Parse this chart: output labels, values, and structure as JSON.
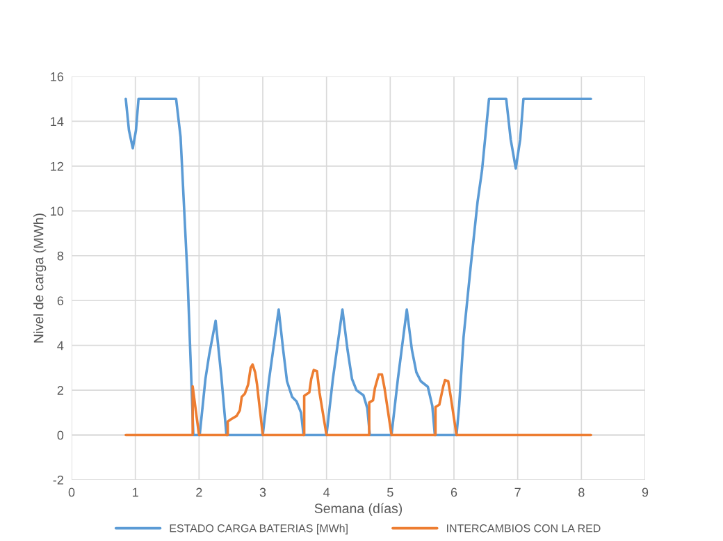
{
  "chart_data": {
    "type": "line",
    "xlabel": "Semana (días)",
    "ylabel": "Nivel de carga (MWh)",
    "xlim": [
      0,
      9
    ],
    "xticks": [
      0,
      1,
      2,
      3,
      4,
      5,
      6,
      7,
      8,
      9
    ],
    "ylim": [
      -2,
      16
    ],
    "yticks": [
      -2,
      0,
      2,
      4,
      6,
      8,
      10,
      12,
      14,
      16
    ],
    "grid": true,
    "legend": "bottom",
    "marker": "none",
    "line_style": "solid",
    "series": [
      {
        "name": "ESTADO CARGA BATERIAS [MWh]",
        "color": "#5b9bd5",
        "x": [
          0.85,
          0.9,
          0.96,
          1.01,
          1.05,
          1.64,
          1.71,
          1.82,
          1.91,
          2.01,
          2.1,
          2.16,
          2.26,
          2.35,
          2.43,
          3.0,
          3.1,
          3.25,
          3.32,
          3.38,
          3.46,
          3.53,
          3.6,
          3.64,
          4.0,
          4.1,
          4.25,
          4.33,
          4.4,
          4.47,
          4.58,
          4.64,
          4.68,
          5.02,
          5.12,
          5.26,
          5.34,
          5.41,
          5.48,
          5.59,
          5.66,
          5.7,
          6.04,
          6.08,
          6.15,
          6.26,
          6.37,
          6.44,
          6.55,
          6.82,
          6.89,
          6.97,
          7.04,
          7.09,
          8.15
        ],
        "values": [
          15,
          13.6,
          12.8,
          13.6,
          15,
          15,
          13.3,
          7.0,
          0,
          0,
          2.5,
          3.6,
          5.1,
          2.6,
          0,
          0,
          2.5,
          5.6,
          3.8,
          2.4,
          1.7,
          1.5,
          1.0,
          0,
          0,
          2.5,
          5.6,
          3.8,
          2.5,
          2.0,
          1.77,
          1.2,
          0,
          0,
          2.5,
          5.6,
          3.8,
          2.8,
          2.4,
          2.15,
          1.3,
          0,
          0,
          1.25,
          4.35,
          7.45,
          10.4,
          11.8,
          15,
          15,
          13.2,
          11.9,
          13.2,
          15,
          15
        ]
      },
      {
        "name": "INTERCAMBIOS CON LA RED",
        "color": "#ed7d31",
        "x": [
          0.85,
          1.9,
          1.9,
          1.96,
          2.0,
          2.45,
          2.45,
          2.5,
          2.59,
          2.64,
          2.67,
          2.72,
          2.77,
          2.81,
          2.84,
          2.88,
          2.91,
          3.0,
          3.65,
          3.65,
          3.73,
          3.76,
          3.8,
          3.85,
          3.89,
          4.0,
          4.67,
          4.67,
          4.73,
          4.76,
          4.82,
          4.87,
          4.91,
          5.02,
          5.71,
          5.71,
          5.77,
          5.83,
          5.86,
          5.91,
          5.95,
          6.04,
          8.15
        ],
        "values": [
          0,
          0,
          2.17,
          0.85,
          0,
          0,
          0.6,
          0.7,
          0.85,
          1.1,
          1.7,
          1.85,
          2.25,
          3.0,
          3.15,
          2.8,
          2.25,
          0,
          0,
          1.75,
          1.9,
          2.5,
          2.9,
          2.85,
          1.9,
          0,
          0,
          1.45,
          1.55,
          2.1,
          2.7,
          2.7,
          2.1,
          0,
          0,
          1.25,
          1.35,
          2.15,
          2.45,
          2.4,
          1.7,
          0,
          0
        ]
      }
    ]
  }
}
